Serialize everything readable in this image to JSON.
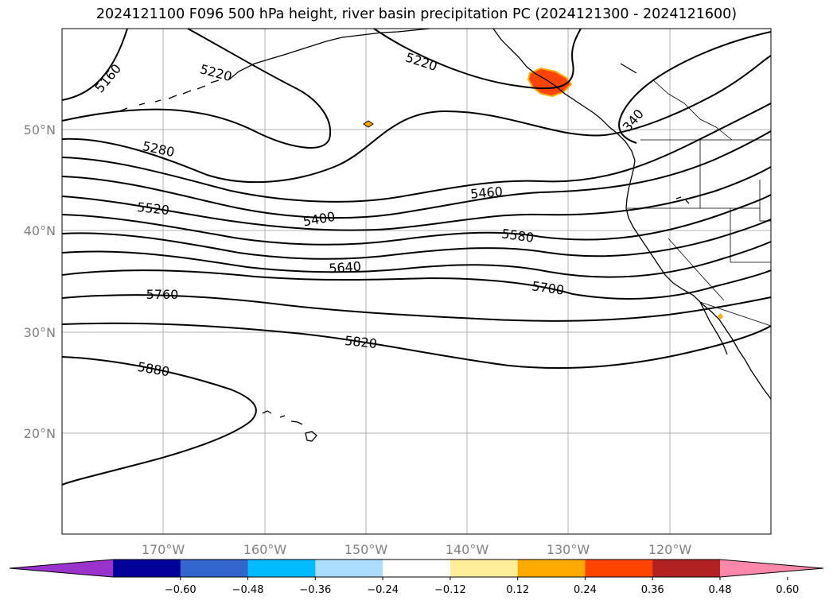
{
  "title": "2024121100 F096 500 hPa height, river basin precipitation PC (2024121300 - 2024121600)",
  "map": {
    "lon_ticks": [
      "170°W",
      "160°W",
      "150°W",
      "140°W",
      "130°W",
      "120°W"
    ],
    "lat_ticks": [
      "50°N",
      "40°N",
      "30°N",
      "20°N"
    ],
    "contour_labels": [
      "5160",
      "5220",
      "5220",
      "5280",
      "340",
      "5460",
      "5520",
      "5400",
      "5580",
      "5640",
      "5700",
      "5760",
      "5820",
      "5880"
    ],
    "coastline_color": "#000000",
    "grid_color": "#b0b0b0"
  },
  "colorbar": {
    "ticks": [
      "−0.60",
      "−0.48",
      "−0.36",
      "−0.24",
      "−0.12",
      "0.12",
      "0.24",
      "0.36",
      "0.48",
      "0.60"
    ],
    "colors": [
      "#9933cc",
      "#000099",
      "#3366cc",
      "#00bbff",
      "#aaddff",
      "#ffffff",
      "#ffee99",
      "#ffaa00",
      "#ff4400",
      "#b22222",
      "#ff88aa"
    ]
  }
}
